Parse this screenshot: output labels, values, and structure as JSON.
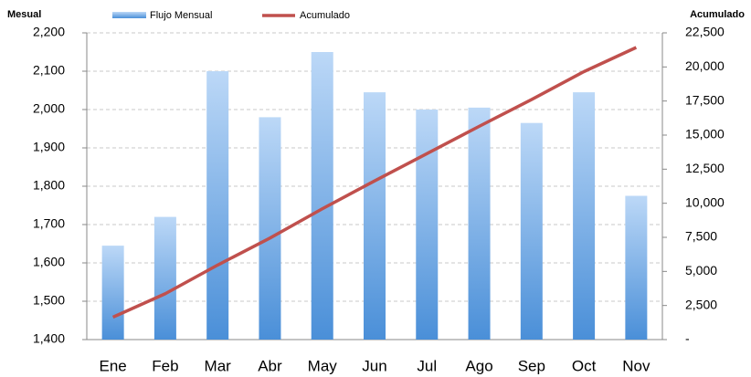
{
  "chart_data": {
    "type": "bar_line",
    "y_label": "Mesual",
    "y2_label": "Acumulado",
    "categories": [
      "Ene",
      "Feb",
      "Mar",
      "Abr",
      "May",
      "Jun",
      "Jul",
      "Ago",
      "Sep",
      "Oct",
      "Nov"
    ],
    "series": [
      {
        "name": "Flujo Mensual",
        "color": "#4a8fd8",
        "type": "bar",
        "values": [
          1645,
          1720,
          2100,
          1980,
          2150,
          2045,
          2000,
          2005,
          1965,
          2045,
          1775
        ]
      },
      {
        "name": "Acumulado",
        "color": "#c0504d",
        "type": "line",
        "axis": "y2",
        "values": [
          1645,
          3365,
          5465,
          7445,
          9595,
          11640,
          13640,
          15645,
          17610,
          19655,
          21430
        ]
      }
    ],
    "ylim": [
      1400,
      2200
    ],
    "yticks": [
      {
        "value": 1400,
        "label": "1,400"
      },
      {
        "value": 1500,
        "label": "1,500"
      },
      {
        "value": 1600,
        "label": "1,600"
      },
      {
        "value": 1700,
        "label": "1,700"
      },
      {
        "value": 1800,
        "label": "1,800"
      },
      {
        "value": 1900,
        "label": "1,900"
      },
      {
        "value": 2000,
        "label": "2,000"
      },
      {
        "value": 2100,
        "label": "2,100"
      },
      {
        "value": 2200,
        "label": "2,200"
      }
    ],
    "y2lim": [
      0,
      22500
    ],
    "y2ticks": [
      {
        "value": 0,
        "label": "-"
      },
      {
        "value": 2500,
        "label": "2,500"
      },
      {
        "value": 5000,
        "label": "5,000"
      },
      {
        "value": 7500,
        "label": "7,500"
      },
      {
        "value": 10000,
        "label": "10,000"
      },
      {
        "value": 12500,
        "label": "12,500"
      },
      {
        "value": 15000,
        "label": "15,000"
      },
      {
        "value": 17500,
        "label": "17,500"
      },
      {
        "value": 20000,
        "label": "20,000"
      },
      {
        "value": 22500,
        "label": "22,500"
      }
    ],
    "grid": true
  }
}
